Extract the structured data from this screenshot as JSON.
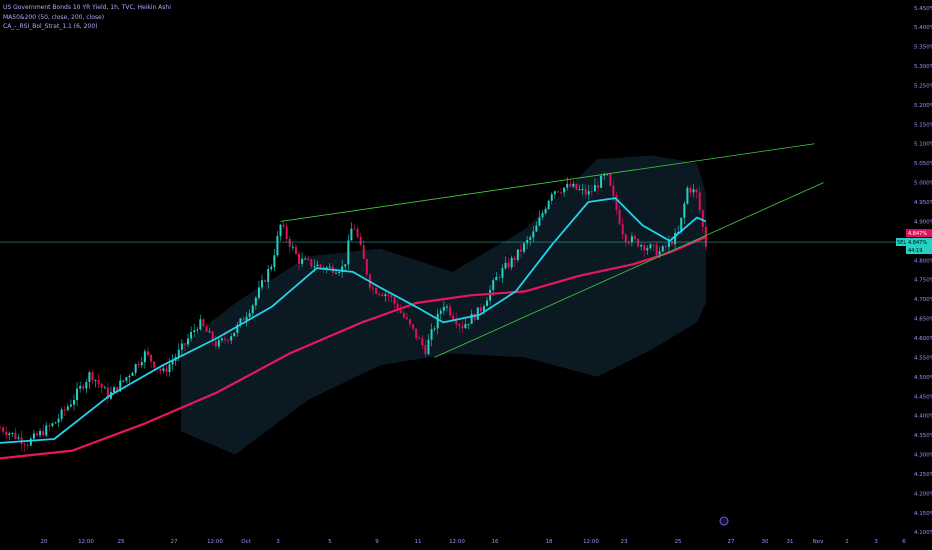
{
  "legend": {
    "symbol": "US Government Bonds 10 YR Yield, 1h, TVC, Heikin Ashi",
    "ma": "MA50&200 (50, close, 200, close)",
    "strat": "CA_-_RSI_Bol_Strat_1.1 (6, 200)"
  },
  "price_tags": {
    "left": "SELL",
    "current": "4.847%",
    "pct": "4.847%",
    "sub": "4.847%",
    "countdown": "44:19"
  },
  "colors": {
    "background": "#000000",
    "bullish": "#22d3c5",
    "bearish": "#e0105a",
    "ma50": "#22d3ee",
    "ma200": "#e8175d",
    "trendline": "#3fcf3f",
    "band": "#0b1a22",
    "axis_text": "#a58dff"
  },
  "chart_data": {
    "type": "candlestick",
    "title": "US Government Bonds 10 YR Yield, 1h, TVC, Heikin Ashi",
    "y_ticks": [
      "5.450%",
      "5.400%",
      "5.350%",
      "5.300%",
      "5.250%",
      "5.200%",
      "5.150%",
      "5.100%",
      "5.050%",
      "5.000%",
      "4.950%",
      "4.900%",
      "4.850%",
      "4.800%",
      "4.750%",
      "4.700%",
      "4.650%",
      "4.600%",
      "4.550%",
      "4.500%",
      "4.450%",
      "4.400%",
      "4.350%",
      "4.300%",
      "4.250%",
      "4.200%",
      "4.150%",
      "4.100%"
    ],
    "ylim": [
      4.08,
      5.47
    ],
    "x_ticks": [
      "20",
      "12:00",
      "25",
      "27",
      "12:00",
      "Oct",
      "3",
      "5",
      "9",
      "11",
      "12:00",
      "16",
      "18",
      "12:00",
      "23",
      "25",
      "27",
      "30",
      "31",
      "Nov",
      "2",
      "3",
      "6"
    ],
    "price_path": [
      [
        0.0,
        4.37
      ],
      [
        0.03,
        4.33
      ],
      [
        0.06,
        4.38
      ],
      [
        0.08,
        4.44
      ],
      [
        0.1,
        4.51
      ],
      [
        0.12,
        4.45
      ],
      [
        0.14,
        4.5
      ],
      [
        0.16,
        4.56
      ],
      [
        0.18,
        4.51
      ],
      [
        0.2,
        4.57
      ],
      [
        0.22,
        4.64
      ],
      [
        0.24,
        4.58
      ],
      [
        0.26,
        4.62
      ],
      [
        0.28,
        4.69
      ],
      [
        0.3,
        4.79
      ],
      [
        0.31,
        4.89
      ],
      [
        0.33,
        4.8
      ],
      [
        0.36,
        4.78
      ],
      [
        0.38,
        4.78
      ],
      [
        0.39,
        4.9
      ],
      [
        0.41,
        4.73
      ],
      [
        0.43,
        4.71
      ],
      [
        0.45,
        4.64
      ],
      [
        0.47,
        4.57
      ],
      [
        0.49,
        4.69
      ],
      [
        0.51,
        4.63
      ],
      [
        0.53,
        4.67
      ],
      [
        0.55,
        4.76
      ],
      [
        0.57,
        4.81
      ],
      [
        0.59,
        4.87
      ],
      [
        0.61,
        4.98
      ],
      [
        0.63,
        4.99
      ],
      [
        0.65,
        4.97
      ],
      [
        0.67,
        5.02
      ],
      [
        0.69,
        4.86
      ],
      [
        0.71,
        4.84
      ],
      [
        0.73,
        4.82
      ],
      [
        0.75,
        4.87
      ],
      [
        0.76,
        4.99
      ],
      [
        0.77,
        4.97
      ],
      [
        0.78,
        4.84
      ]
    ],
    "ma50": [
      [
        0.0,
        4.33
      ],
      [
        0.06,
        4.34
      ],
      [
        0.12,
        4.45
      ],
      [
        0.18,
        4.53
      ],
      [
        0.24,
        4.6
      ],
      [
        0.3,
        4.68
      ],
      [
        0.35,
        4.78
      ],
      [
        0.39,
        4.77
      ],
      [
        0.42,
        4.73
      ],
      [
        0.46,
        4.68
      ],
      [
        0.49,
        4.64
      ],
      [
        0.53,
        4.66
      ],
      [
        0.57,
        4.72
      ],
      [
        0.61,
        4.84
      ],
      [
        0.65,
        4.95
      ],
      [
        0.68,
        4.96
      ],
      [
        0.71,
        4.89
      ],
      [
        0.74,
        4.85
      ],
      [
        0.77,
        4.91
      ],
      [
        0.78,
        4.9
      ]
    ],
    "ma200": [
      [
        0.0,
        4.29
      ],
      [
        0.08,
        4.31
      ],
      [
        0.16,
        4.38
      ],
      [
        0.24,
        4.46
      ],
      [
        0.32,
        4.56
      ],
      [
        0.4,
        4.64
      ],
      [
        0.46,
        4.69
      ],
      [
        0.52,
        4.71
      ],
      [
        0.58,
        4.72
      ],
      [
        0.64,
        4.76
      ],
      [
        0.7,
        4.79
      ],
      [
        0.74,
        4.82
      ],
      [
        0.78,
        4.86
      ]
    ],
    "band_upper": [
      [
        0.2,
        4.58
      ],
      [
        0.26,
        4.69
      ],
      [
        0.34,
        4.81
      ],
      [
        0.42,
        4.83
      ],
      [
        0.5,
        4.77
      ],
      [
        0.58,
        4.88
      ],
      [
        0.66,
        5.06
      ],
      [
        0.72,
        5.07
      ],
      [
        0.77,
        5.05
      ],
      [
        0.78,
        4.97
      ]
    ],
    "band_lower": [
      [
        0.2,
        4.36
      ],
      [
        0.26,
        4.3
      ],
      [
        0.34,
        4.44
      ],
      [
        0.42,
        4.53
      ],
      [
        0.5,
        4.56
      ],
      [
        0.58,
        4.55
      ],
      [
        0.66,
        4.5
      ],
      [
        0.72,
        4.57
      ],
      [
        0.77,
        4.64
      ],
      [
        0.78,
        4.69
      ]
    ],
    "trendlines": [
      {
        "from": [
          0.31,
          4.9
        ],
        "to": [
          0.9,
          5.1
        ]
      },
      {
        "from": [
          0.48,
          4.55
        ],
        "to": [
          0.91,
          5.0
        ]
      }
    ],
    "current_price": 4.847
  }
}
